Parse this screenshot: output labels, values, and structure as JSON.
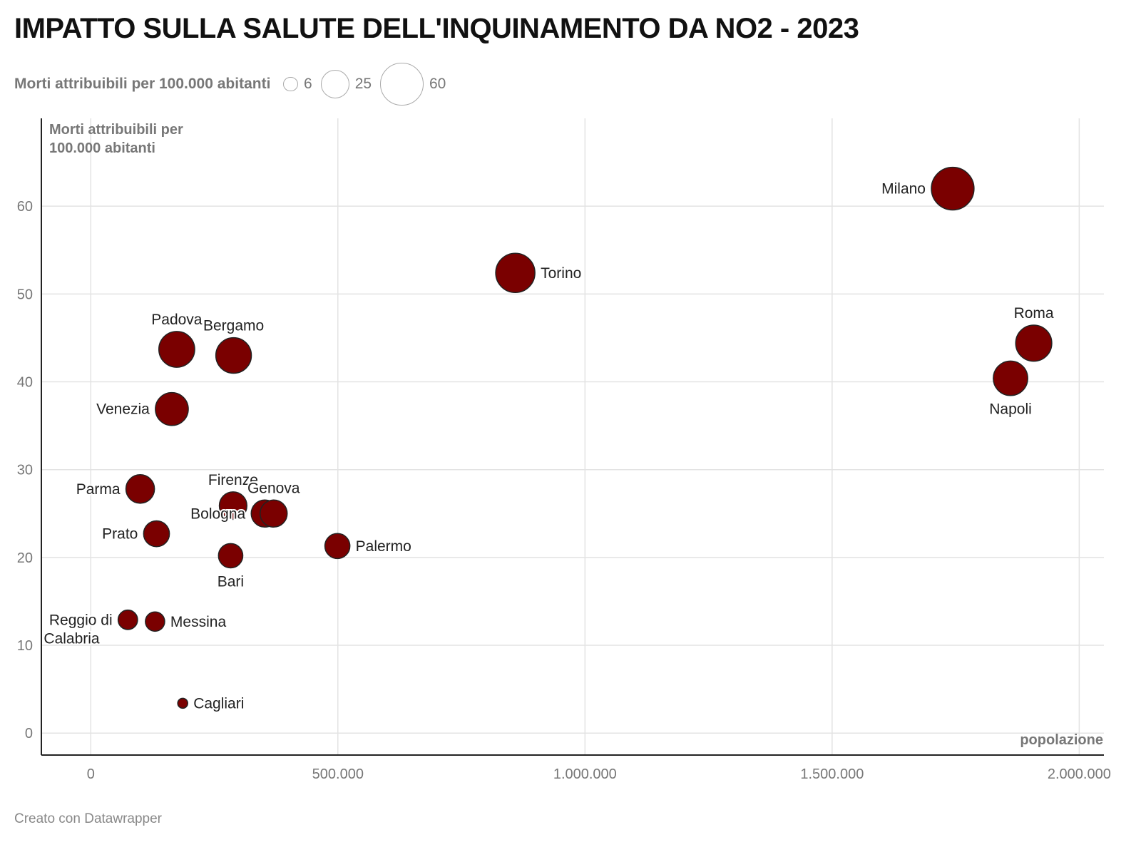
{
  "title": "IMPATTO SULLA SALUTE DELL'INQUINAMENTO DA NO2 - 2023",
  "legend": {
    "title": "Morti attribuibili per 100.000 abitanti",
    "sizes": [
      6,
      25,
      60
    ]
  },
  "credit": "Creato con Datawrapper",
  "colors": {
    "point": "#7a0000",
    "stroke": "#222222",
    "grid": "#e3e3e3"
  },
  "chart_data": {
    "type": "scatter",
    "title": "IMPATTO SULLA SALUTE DELL'INQUINAMENTO DA NO2 - 2023",
    "xlabel": "popolazione",
    "ylabel_lines": [
      "Morti attribuibili per",
      "100.000 abitanti"
    ],
    "xlim": [
      -100000,
      2050000
    ],
    "ylim": [
      -2.5,
      70
    ],
    "xticks": [
      0,
      500000,
      1000000,
      1500000,
      2000000
    ],
    "xtick_labels": [
      "0",
      "500.000",
      "1.000.000",
      "1.500.000",
      "2.000.000"
    ],
    "yticks": [
      0,
      10,
      20,
      30,
      40,
      50,
      60
    ],
    "ytick_labels": [
      "0",
      "10",
      "20",
      "30",
      "40",
      "50",
      "60"
    ],
    "grid": true,
    "points": [
      {
        "label": "Milano",
        "x": 1744000,
        "y": 62.0,
        "pos": "left"
      },
      {
        "label": "Torino",
        "x": 859000,
        "y": 52.4,
        "pos": "right"
      },
      {
        "label": "Roma",
        "x": 1908000,
        "y": 44.4,
        "pos": "top"
      },
      {
        "label": "Napoli",
        "x": 1861000,
        "y": 40.4,
        "pos": "bottom"
      },
      {
        "label": "Padova",
        "x": 174000,
        "y": 43.7,
        "pos": "top"
      },
      {
        "label": "Bergamo",
        "x": 289000,
        "y": 43.0,
        "pos": "top"
      },
      {
        "label": "Venezia",
        "x": 164000,
        "y": 36.9,
        "pos": "left"
      },
      {
        "label": "Parma",
        "x": 100000,
        "y": 27.8,
        "pos": "left"
      },
      {
        "label": "Firenze",
        "x": 288000,
        "y": 25.9,
        "pos": "top"
      },
      {
        "label": "Bologna",
        "x": 352000,
        "y": 25.0,
        "pos": "left"
      },
      {
        "label": "Genova",
        "x": 370000,
        "y": 25.0,
        "pos": "top"
      },
      {
        "label": "Prato",
        "x": 133000,
        "y": 22.7,
        "pos": "left"
      },
      {
        "label": "Bari",
        "x": 283000,
        "y": 20.2,
        "pos": "bottom"
      },
      {
        "label": "Palermo",
        "x": 499000,
        "y": 21.3,
        "pos": "right"
      },
      {
        "label": "Reggio di Calabria",
        "x": 75000,
        "y": 12.9,
        "pos": "left"
      },
      {
        "label": "Messina",
        "x": 130000,
        "y": 12.7,
        "pos": "right"
      },
      {
        "label": "Cagliari",
        "x": 186000,
        "y": 3.4,
        "pos": "right"
      }
    ]
  }
}
